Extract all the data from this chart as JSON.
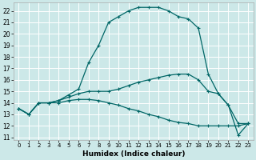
{
  "xlabel": "Humidex (Indice chaleur)",
  "bg_color": "#cce8e8",
  "grid_color": "#ffffff",
  "line_color": "#006666",
  "x_ticks": [
    0,
    1,
    2,
    3,
    4,
    5,
    6,
    7,
    8,
    9,
    10,
    11,
    12,
    13,
    14,
    15,
    16,
    17,
    18,
    19,
    20,
    21,
    22,
    23
  ],
  "y_ticks": [
    11,
    12,
    13,
    14,
    15,
    16,
    17,
    18,
    19,
    20,
    21,
    22
  ],
  "ylim": [
    10.8,
    22.7
  ],
  "xlim": [
    -0.5,
    23.5
  ],
  "series": [
    [
      13.5,
      13.0,
      14.0,
      14.0,
      14.2,
      14.7,
      15.2,
      17.5,
      19.0,
      21.0,
      21.5,
      22.0,
      22.3,
      22.3,
      22.3,
      22.0,
      21.5,
      21.3,
      20.5,
      16.5,
      14.8,
      13.8,
      11.2,
      12.2
    ],
    [
      13.5,
      13.0,
      14.0,
      14.0,
      14.2,
      14.5,
      14.8,
      15.0,
      15.0,
      15.0,
      15.2,
      15.5,
      15.8,
      16.0,
      16.2,
      16.4,
      16.5,
      16.5,
      16.0,
      15.0,
      14.8,
      13.8,
      12.2,
      12.2
    ],
    [
      13.5,
      13.0,
      14.0,
      14.0,
      14.0,
      14.2,
      14.3,
      14.3,
      14.2,
      14.0,
      13.8,
      13.5,
      13.3,
      13.0,
      12.8,
      12.5,
      12.3,
      12.2,
      12.0,
      12.0,
      12.0,
      12.0,
      12.0,
      12.2
    ]
  ]
}
